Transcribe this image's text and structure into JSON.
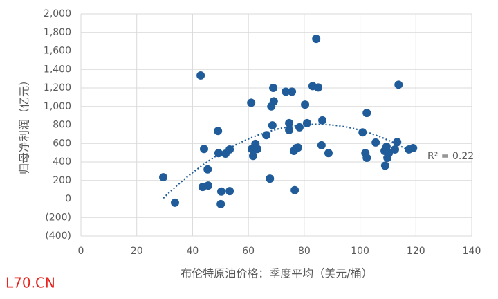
{
  "chart_data": {
    "type": "scatter",
    "xlabel": "布伦特原油价格：季度平均（美元/桶）",
    "ylabel": "归母净利润（亿元）",
    "annotation": "R² = 0.22",
    "watermark": "L70.CN",
    "trendline": "polynomial",
    "color": "#1f5c99",
    "grid": true,
    "xlim": [
      0,
      140
    ],
    "xticks": [
      0,
      20,
      40,
      60,
      80,
      100,
      120,
      140
    ],
    "ylim": [
      -400,
      2000
    ],
    "yticks": [
      {
        "value": -400,
        "label": "(400)"
      },
      {
        "value": -200,
        "label": "(200)"
      },
      0,
      200,
      400,
      600,
      800,
      {
        "value": 1000,
        "label": "1,000"
      },
      {
        "value": 1200,
        "label": "1,200"
      },
      {
        "value": 1400,
        "label": "1,400"
      },
      {
        "value": 1600,
        "label": "1,600"
      },
      {
        "value": 1800,
        "label": "1,800"
      },
      {
        "value": 2000,
        "label": "2,000"
      }
    ],
    "x": [
      29.5,
      33.7,
      42.9,
      44.1,
      45.4,
      45.6,
      43.6,
      49.1,
      49.3,
      50.3,
      50.1,
      51.8,
      53.3,
      53.3,
      61.0,
      61.2,
      61.7,
      62.5,
      63.2,
      66.4,
      67.7,
      68.2,
      68.9,
      69.1,
      68.6,
      73.4,
      74.6,
      74.6,
      75.6,
      76.3,
      76.6,
      77.1,
      77.8,
      78.3,
      80.3,
      81.0,
      83.0,
      84.3,
      85.0,
      86.5,
      86.2,
      88.7,
      100.9,
      101.9,
      102.4,
      102.4,
      105.6,
      108.8,
      109.0,
      109.5,
      109.8,
      110.3,
      112.5,
      113.3,
      113.8,
      117.5,
      119.0
    ],
    "y": [
      235,
      -40,
      1335,
      540,
      320,
      145,
      130,
      735,
      495,
      80,
      -55,
      490,
      535,
      85,
      1040,
      540,
      465,
      595,
      540,
      690,
      220,
      1000,
      1200,
      1055,
      795,
      1160,
      820,
      745,
      1160,
      520,
      95,
      550,
      555,
      775,
      1020,
      820,
      1220,
      1730,
      1205,
      850,
      580,
      495,
      720,
      495,
      930,
      445,
      610,
      520,
      360,
      565,
      445,
      495,
      535,
      615,
      1235,
      535,
      550
    ]
  }
}
